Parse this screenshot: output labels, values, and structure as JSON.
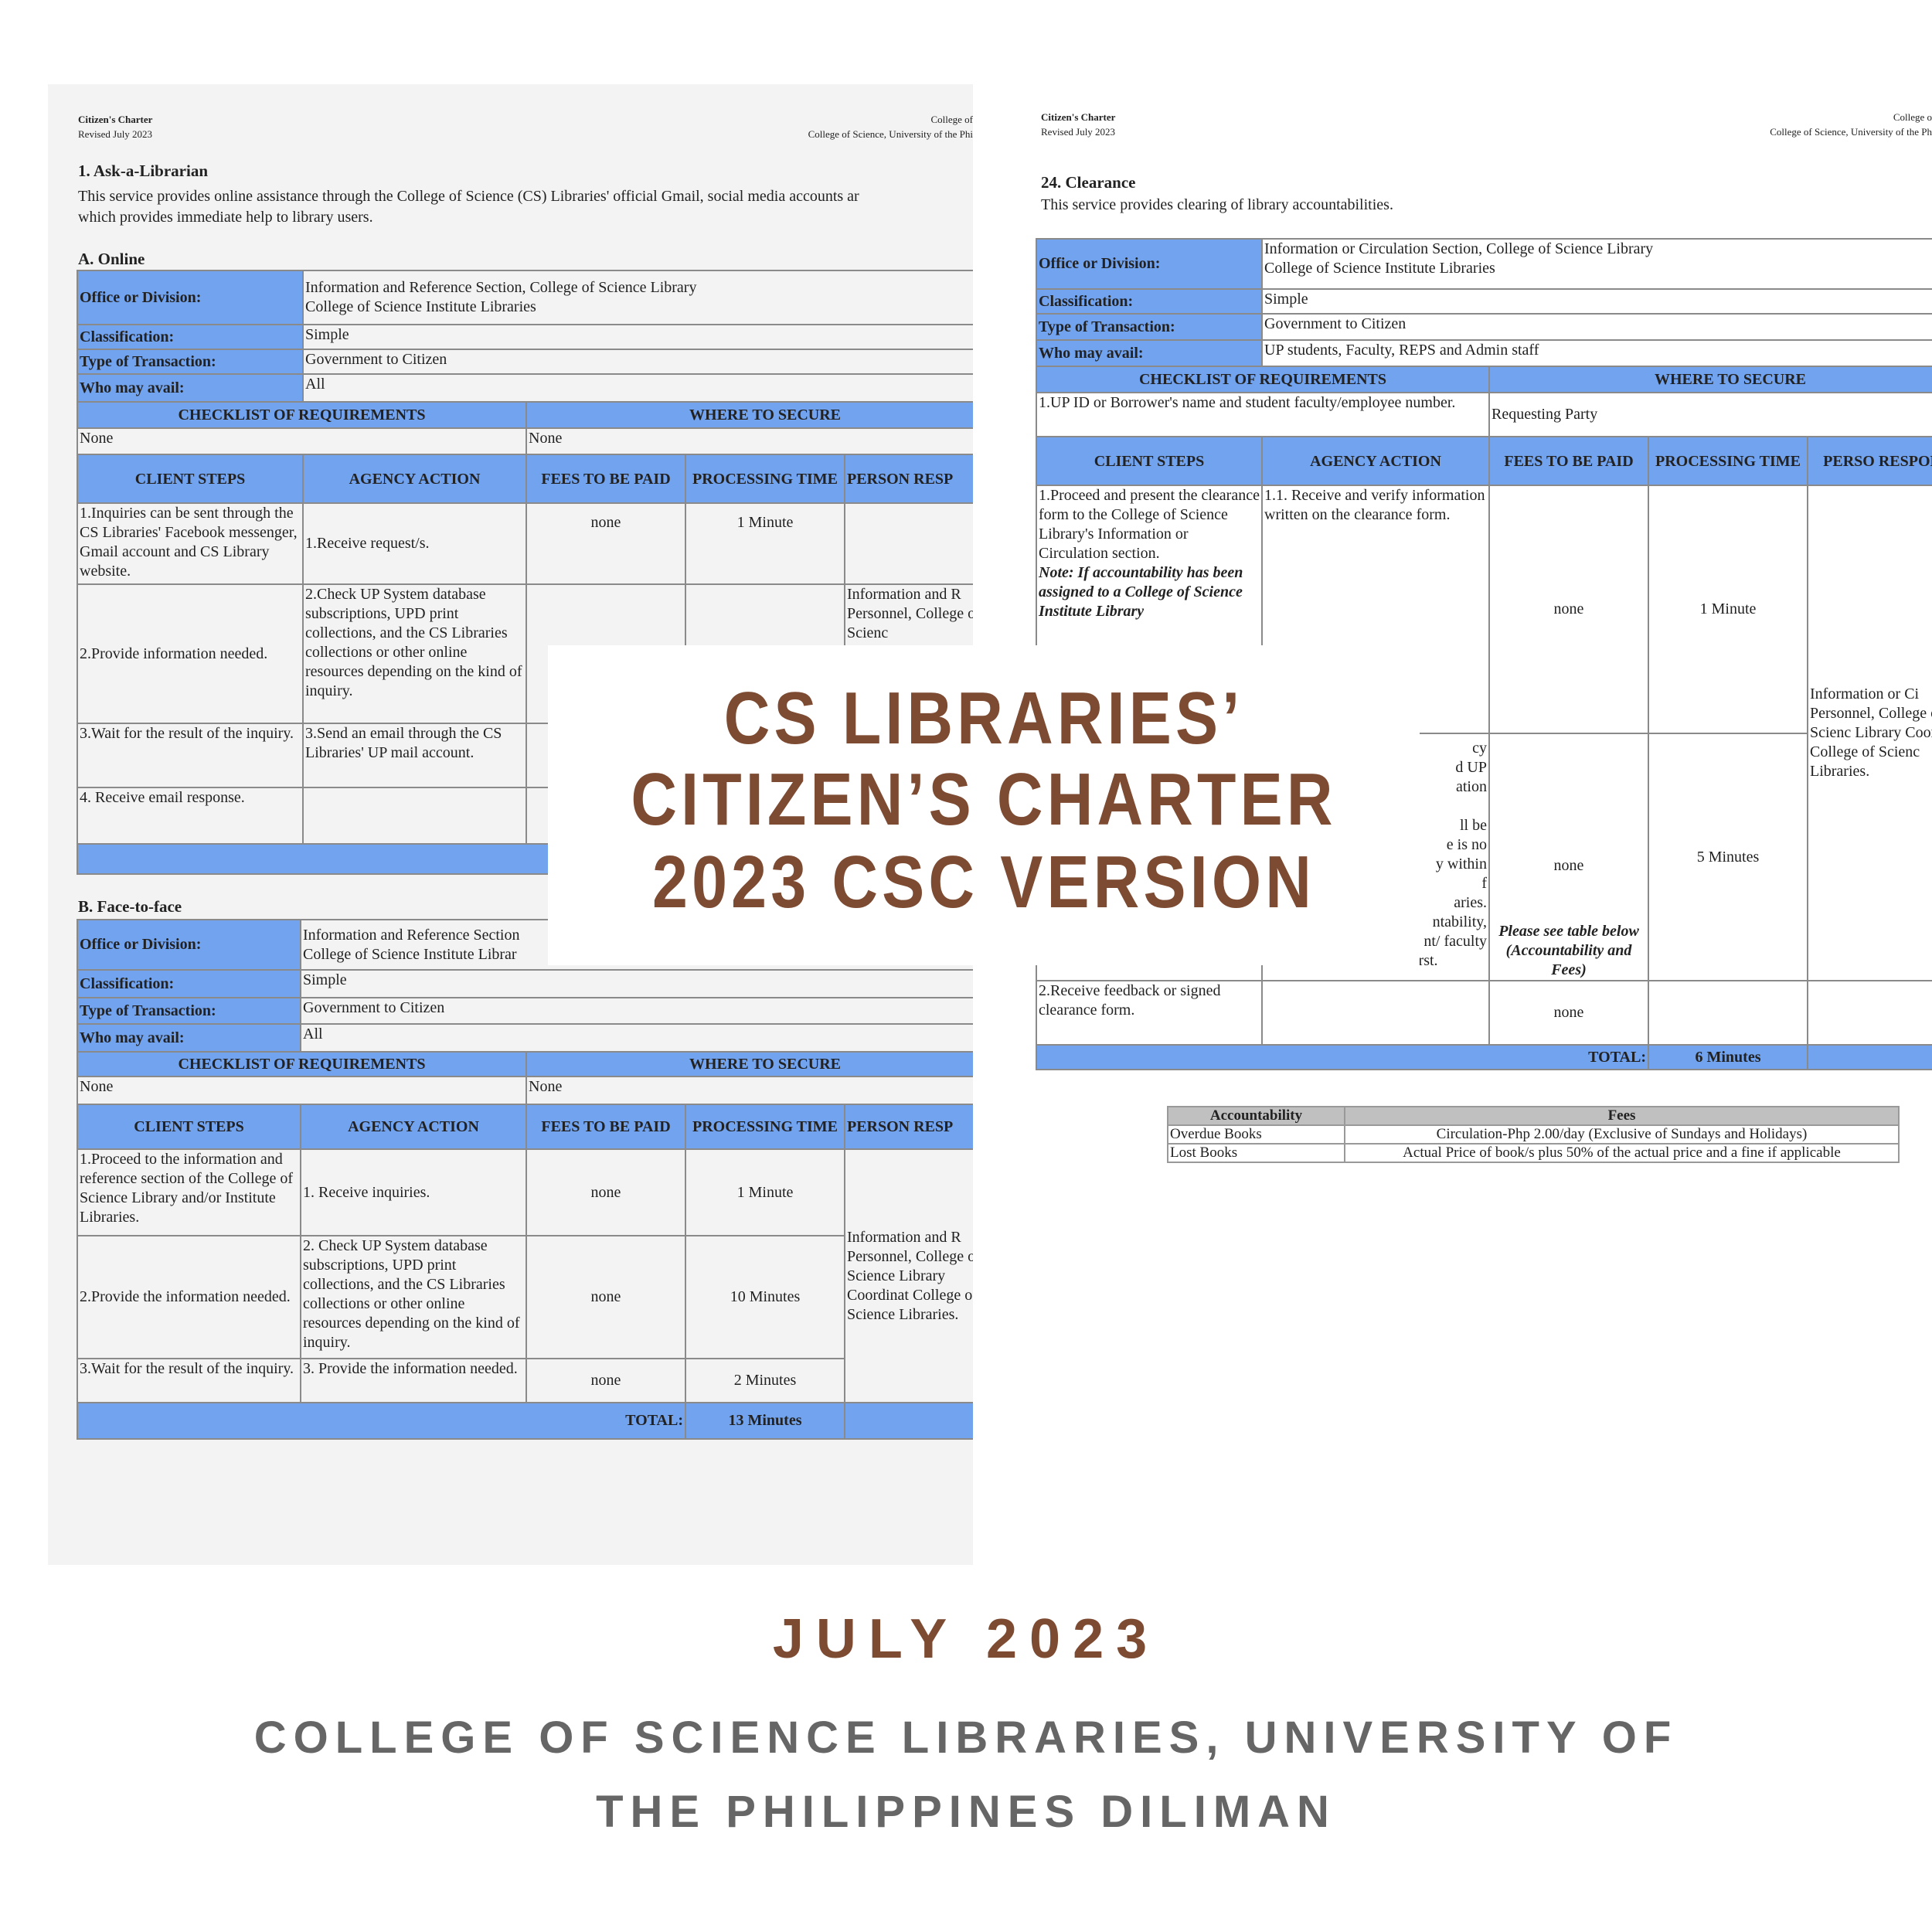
{
  "left_doc": {
    "header_title": "Citizen's Charter",
    "header_revised": "Revised July 2023",
    "header_right_1": "College of",
    "header_right_2": "College of Science, University of the Phi",
    "section_title": "1.  Ask-a-Librarian",
    "section_desc_1": "This service provides online assistance through the College of Science (CS) Libraries' official Gmail, social media accounts ar",
    "section_desc_2": "which provides immediate help to library users.",
    "online": {
      "title": "A.  Online",
      "office_label": "Office or Division:",
      "office_value_1": "Information and Reference Section, College of Science Library",
      "office_value_2": "College of Science Institute Libraries",
      "class_label": "Classification:",
      "class_value": "Simple",
      "type_label": "Type of Transaction:",
      "type_value": "Government to Citizen",
      "who_label": "Who may avail:",
      "who_value": "All",
      "checklist_header": "CHECKLIST OF REQUIREMENTS",
      "where_header": "WHERE TO SECURE",
      "checklist_value": "None",
      "where_value": "None",
      "columns": [
        "CLIENT STEPS",
        "AGENCY ACTION",
        "FEES TO BE PAID",
        "PROCESSING TIME",
        "PERSON RESP"
      ],
      "rows": [
        {
          "client": "1.Inquiries can be sent through the CS Libraries' Facebook messenger, Gmail account and CS Library website.",
          "agency": "1.Receive request/s.",
          "fees": "none",
          "time": "1 Minute"
        },
        {
          "client": "2.Provide information needed.",
          "agency": "2.Check UP System database subscriptions, UPD print collections, and the CS Libraries collections or other online resources depending on the kind of inquiry.",
          "fees": "",
          "time": ""
        },
        {
          "client": "3.Wait for the result of the inquiry.",
          "agency": "3.Send an email through the CS Libraries' UP mail account.",
          "fees": "",
          "time": ""
        },
        {
          "client": "4. Receive email response.",
          "agency": "",
          "fees": "",
          "time": ""
        }
      ],
      "person": "Information and R Personnel, College of Scienc"
    },
    "face": {
      "title": "B.  Face-to-face",
      "office_label": "Office or Division:",
      "office_value_1": "Information and Reference Section",
      "office_value_2": "College of Science Institute Librar",
      "class_label": "Classification:",
      "class_value": "Simple",
      "type_label": "Type of Transaction:",
      "type_value": "Government to Citizen",
      "who_label": "Who may avail:",
      "who_value": "All",
      "checklist_header": "CHECKLIST OF REQUIREMENTS",
      "where_header": "WHERE TO SECURE",
      "checklist_value": "None",
      "where_value": "None",
      "columns": [
        "CLIENT STEPS",
        "AGENCY ACTION",
        "FEES TO BE PAID",
        "PROCESSING TIME",
        "PERSON RESP"
      ],
      "rows": [
        {
          "client": "1.Proceed to the information and reference section of the College of Science Library and/or Institute Libraries.",
          "agency": "1. Receive inquiries.",
          "fees": "none",
          "time": "1 Minute"
        },
        {
          "client": "2.Provide the information needed.",
          "agency": "2. Check UP System database subscriptions, UPD print collections, and the CS Libraries collections or other online resources depending on the kind of inquiry.",
          "fees": "none",
          "time": "10 Minutes"
        },
        {
          "client": "3.Wait for the result of the inquiry.",
          "agency": "3. Provide the information needed.",
          "fees": "none",
          "time": "2 Minutes"
        }
      ],
      "person": "Information and R Personnel, College of Science Library Coordinat College of Science Libraries.",
      "total_label": "TOTAL:",
      "total_value": "13 Minutes"
    }
  },
  "right_doc": {
    "header_title": "Citizen's Charter",
    "header_revised": "Revised July 2023",
    "header_right_1": "College o",
    "header_right_2": "College of Science, University of the Ph",
    "section_title": "24.  Clearance",
    "section_desc": "This service provides clearing of library accountabilities.",
    "office_label": "Office or Division:",
    "office_value_1": "Information or Circulation Section, College of Science Library",
    "office_value_2": "College of Science Institute Libraries",
    "class_label": "Classification:",
    "class_value": "Simple",
    "type_label": "Type of Transaction:",
    "type_value": "Government to Citizen",
    "who_label": "Who may avail:",
    "who_value": "UP students, Faculty, REPS and Admin staff",
    "checklist_header": "CHECKLIST OF REQUIREMENTS",
    "where_header": "WHERE TO SECURE",
    "checklist_value": "1.UP ID or Borrower's name and student faculty/employee number.",
    "where_value": "Requesting Party",
    "columns": [
      "CLIENT STEPS",
      "AGENCY ACTION",
      "FEES TO BE PAID",
      "PROCESSING TIME",
      "PERSO RESPONSI"
    ],
    "row1": {
      "client": "1.Proceed and present the clearance form to the College of Science Library's Information or Circulation section.",
      "note": "Note: If accountability has been assigned to a College of Science Institute Library",
      "agency": "1.1. Receive and verify information written on the clearance form.",
      "fees": "none",
      "time": "1 Minute"
    },
    "row2": {
      "agency_fragments": [
        "cy",
        "d UP",
        "ation",
        "",
        "ll be",
        "e is no",
        "y within",
        "f",
        "aries.",
        "ntability,",
        "nt/ faculty",
        "to settle it first."
      ],
      "fees": "none",
      "fees_note": "Please see table below (Accountability and Fees)",
      "time": "5 Minutes"
    },
    "row3": {
      "client": "2.Receive feedback or signed clearance form.",
      "fees": "none"
    },
    "person": "Information or Ci Personnel, College of Scienc Library Coordina College of Scienc Libraries.",
    "total_label": "TOTAL:",
    "total_value": "6 Minutes",
    "fees_table": {
      "headers": [
        "Accountability",
        "Fees"
      ],
      "rows": [
        [
          "Overdue Books",
          "Circulation-Php 2.00/day (Exclusive of Sundays and Holidays)"
        ],
        [
          "Lost Books",
          "Actual Price of book/s plus 50% of the actual price and a fine if applicable"
        ]
      ]
    }
  },
  "title": {
    "line1": "CS LIBRARIES’",
    "line2": "CITIZEN’S CHARTER",
    "line3": "2023 CSC VERSION"
  },
  "date": "JULY 2023",
  "subtitle_1": "COLLEGE OF SCIENCE LIBRARIES, UNIVERSITY OF",
  "subtitle_2": "THE PHILIPPINES DILIMAN",
  "colors": {
    "title": "#7d4a32",
    "subtitle": "#666666",
    "table_header": "#72a3ef"
  }
}
